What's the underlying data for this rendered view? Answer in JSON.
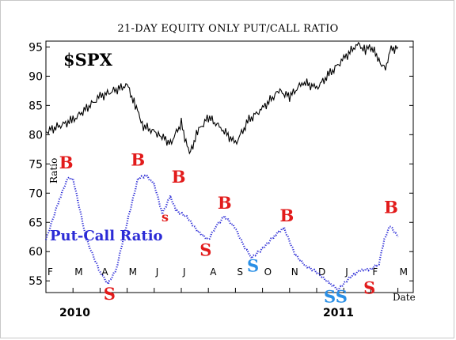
{
  "colors": {
    "buy": "#e21b1b",
    "sell": "#e21b1b",
    "sell_minor": "#2a8fe6",
    "ratio": "#2b2bd6",
    "price": "#000000"
  },
  "chart_data": {
    "type": "line",
    "title": "21-DAY EQUITY ONLY PUT/CALL RATIO",
    "price_label": "$SPX",
    "ratio_label": "Put-Call Ratio",
    "ratio_axis_label": "Ratio",
    "xlabel": "Date",
    "ylim": [
      53,
      96
    ],
    "yticks": [
      "55",
      "60",
      "65",
      "70",
      "75",
      "80",
      "85",
      "90",
      "95"
    ],
    "months": [
      "F",
      "M",
      "A",
      "M",
      "J",
      "J",
      "A",
      "S",
      "O",
      "N",
      "D",
      "J",
      "F",
      "M"
    ],
    "years": [
      "2010",
      "2011"
    ],
    "series": [
      {
        "name": "$SPX",
        "style": "solid",
        "points": [
          [
            0,
            80.5
          ],
          [
            1,
            82.5
          ],
          [
            2,
            86.5
          ],
          [
            3,
            88.5
          ],
          [
            3.3,
            85
          ],
          [
            3.6,
            81.5
          ],
          [
            4.2,
            80
          ],
          [
            4.6,
            78.5
          ],
          [
            5,
            82
          ],
          [
            5.3,
            76.5
          ],
          [
            5.6,
            80.5
          ],
          [
            6,
            83
          ],
          [
            6.5,
            81
          ],
          [
            7,
            78.5
          ],
          [
            7.5,
            82.5
          ],
          [
            8,
            84.5
          ],
          [
            8.6,
            87.5
          ],
          [
            9,
            86.5
          ],
          [
            9.5,
            89
          ],
          [
            10,
            88
          ],
          [
            10.5,
            90.5
          ],
          [
            11,
            93
          ],
          [
            11.5,
            95.5
          ],
          [
            11.8,
            94.5
          ],
          [
            12,
            95
          ],
          [
            12.3,
            93
          ],
          [
            12.5,
            91
          ],
          [
            12.75,
            94.5
          ],
          [
            13,
            95
          ]
        ]
      },
      {
        "name": "Put-Call Ratio",
        "style": "dotted",
        "points": [
          [
            0,
            62
          ],
          [
            0.5,
            69
          ],
          [
            0.8,
            72.5
          ],
          [
            1,
            72.5
          ],
          [
            1.5,
            62
          ],
          [
            2,
            56.5
          ],
          [
            2.3,
            54.5
          ],
          [
            2.6,
            57
          ],
          [
            3,
            65
          ],
          [
            3.4,
            72.5
          ],
          [
            3.7,
            73
          ],
          [
            4,
            71.5
          ],
          [
            4.3,
            66.5
          ],
          [
            4.6,
            69.5
          ],
          [
            4.8,
            67
          ],
          [
            5.2,
            66
          ],
          [
            5.6,
            63.5
          ],
          [
            6,
            62
          ],
          [
            6.3,
            64.5
          ],
          [
            6.6,
            66
          ],
          [
            7,
            64
          ],
          [
            7.3,
            61
          ],
          [
            7.6,
            59
          ],
          [
            8,
            60.5
          ],
          [
            8.5,
            63
          ],
          [
            8.8,
            64
          ],
          [
            9.2,
            59.5
          ],
          [
            9.6,
            57.5
          ],
          [
            10,
            56.5
          ],
          [
            10.5,
            54.5
          ],
          [
            10.8,
            53.5
          ],
          [
            11.2,
            55.5
          ],
          [
            11.6,
            56.8
          ],
          [
            12,
            57
          ],
          [
            12.3,
            58
          ],
          [
            12.5,
            62
          ],
          [
            12.7,
            64.5
          ],
          [
            13,
            62.5
          ]
        ]
      }
    ],
    "signals": [
      {
        "text": "B",
        "x": 0.75,
        "y": 74.2,
        "type": "buy",
        "size": 21
      },
      {
        "text": "S",
        "x": 2.35,
        "y": 51.8,
        "type": "sell",
        "size": 21
      },
      {
        "text": "B",
        "x": 3.4,
        "y": 74.7,
        "type": "buy",
        "size": 21
      },
      {
        "text": "s",
        "x": 4.4,
        "y": 65.2,
        "type": "sell",
        "size": 16
      },
      {
        "text": "B",
        "x": 4.9,
        "y": 71.8,
        "type": "buy",
        "size": 21
      },
      {
        "text": "S",
        "x": 5.9,
        "y": 59.3,
        "type": "sell",
        "size": 21
      },
      {
        "text": "B",
        "x": 6.6,
        "y": 67.3,
        "type": "buy",
        "size": 21
      },
      {
        "text": "S",
        "x": 7.65,
        "y": 56.6,
        "type": "sell_minor",
        "size": 21
      },
      {
        "text": "B",
        "x": 8.9,
        "y": 65.2,
        "type": "buy",
        "size": 21
      },
      {
        "text": "SS",
        "x": 10.7,
        "y": 51.3,
        "type": "sell_minor",
        "size": 21
      },
      {
        "text": "S",
        "x": 11.95,
        "y": 52.8,
        "type": "sell",
        "size": 21
      },
      {
        "text": "B",
        "x": 12.75,
        "y": 66.6,
        "type": "buy",
        "size": 21
      }
    ]
  }
}
